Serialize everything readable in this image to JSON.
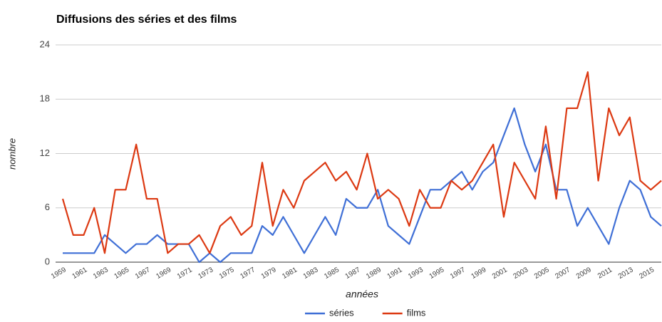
{
  "chart_data": {
    "type": "line",
    "title": "Diffusions des séries et des films",
    "x_label": "années",
    "y_label": "nombre",
    "x": [
      1959,
      1960,
      1961,
      1962,
      1963,
      1964,
      1965,
      1966,
      1967,
      1968,
      1969,
      1970,
      1971,
      1972,
      1973,
      1974,
      1975,
      1976,
      1977,
      1978,
      1979,
      1980,
      1981,
      1982,
      1983,
      1984,
      1985,
      1986,
      1987,
      1988,
      1989,
      1990,
      1991,
      1992,
      1993,
      1994,
      1995,
      1996,
      1997,
      1998,
      1999,
      2000,
      2001,
      2002,
      2003,
      2004,
      2005,
      2006,
      2007,
      2008,
      2009,
      2010,
      2011,
      2012,
      2013,
      2014,
      2015,
      2016
    ],
    "series": [
      {
        "name": "séries",
        "color": "#3f6fd6",
        "values": [
          1,
          1,
          1,
          1,
          3,
          2,
          1,
          2,
          2,
          3,
          2,
          2,
          2,
          0,
          1,
          0,
          1,
          1,
          1,
          4,
          3,
          5,
          3,
          1,
          3,
          5,
          3,
          7,
          6,
          6,
          8,
          4,
          3,
          2,
          5,
          8,
          8,
          9,
          10,
          8,
          10,
          11,
          14,
          17,
          13,
          10,
          13,
          8,
          8,
          4,
          6,
          4,
          2,
          6,
          9,
          8,
          5,
          4
        ]
      },
      {
        "name": "films",
        "color": "#dc3912",
        "values": [
          7,
          3,
          3,
          6,
          1,
          8,
          8,
          13,
          7,
          7,
          1,
          2,
          2,
          3,
          1,
          4,
          5,
          3,
          4,
          11,
          4,
          8,
          6,
          9,
          10,
          11,
          9,
          10,
          8,
          12,
          7,
          8,
          7,
          4,
          8,
          6,
          6,
          9,
          8,
          9,
          11,
          13,
          5,
          11,
          9,
          7,
          15,
          7,
          17,
          17,
          21,
          9,
          17,
          14,
          16,
          9,
          8,
          9
        ]
      }
    ],
    "xlim": [
      1959,
      2016
    ],
    "xticks": [
      1959,
      1961,
      1963,
      1965,
      1967,
      1969,
      1971,
      1973,
      1975,
      1977,
      1979,
      1981,
      1983,
      1985,
      1987,
      1989,
      1991,
      1993,
      1995,
      1997,
      1999,
      2001,
      2003,
      2005,
      2007,
      2009,
      2011,
      2013,
      2015
    ],
    "ylim": [
      0,
      24
    ],
    "yticks": [
      0,
      6,
      12,
      18,
      24
    ],
    "grid": true,
    "legend": "bottom"
  }
}
